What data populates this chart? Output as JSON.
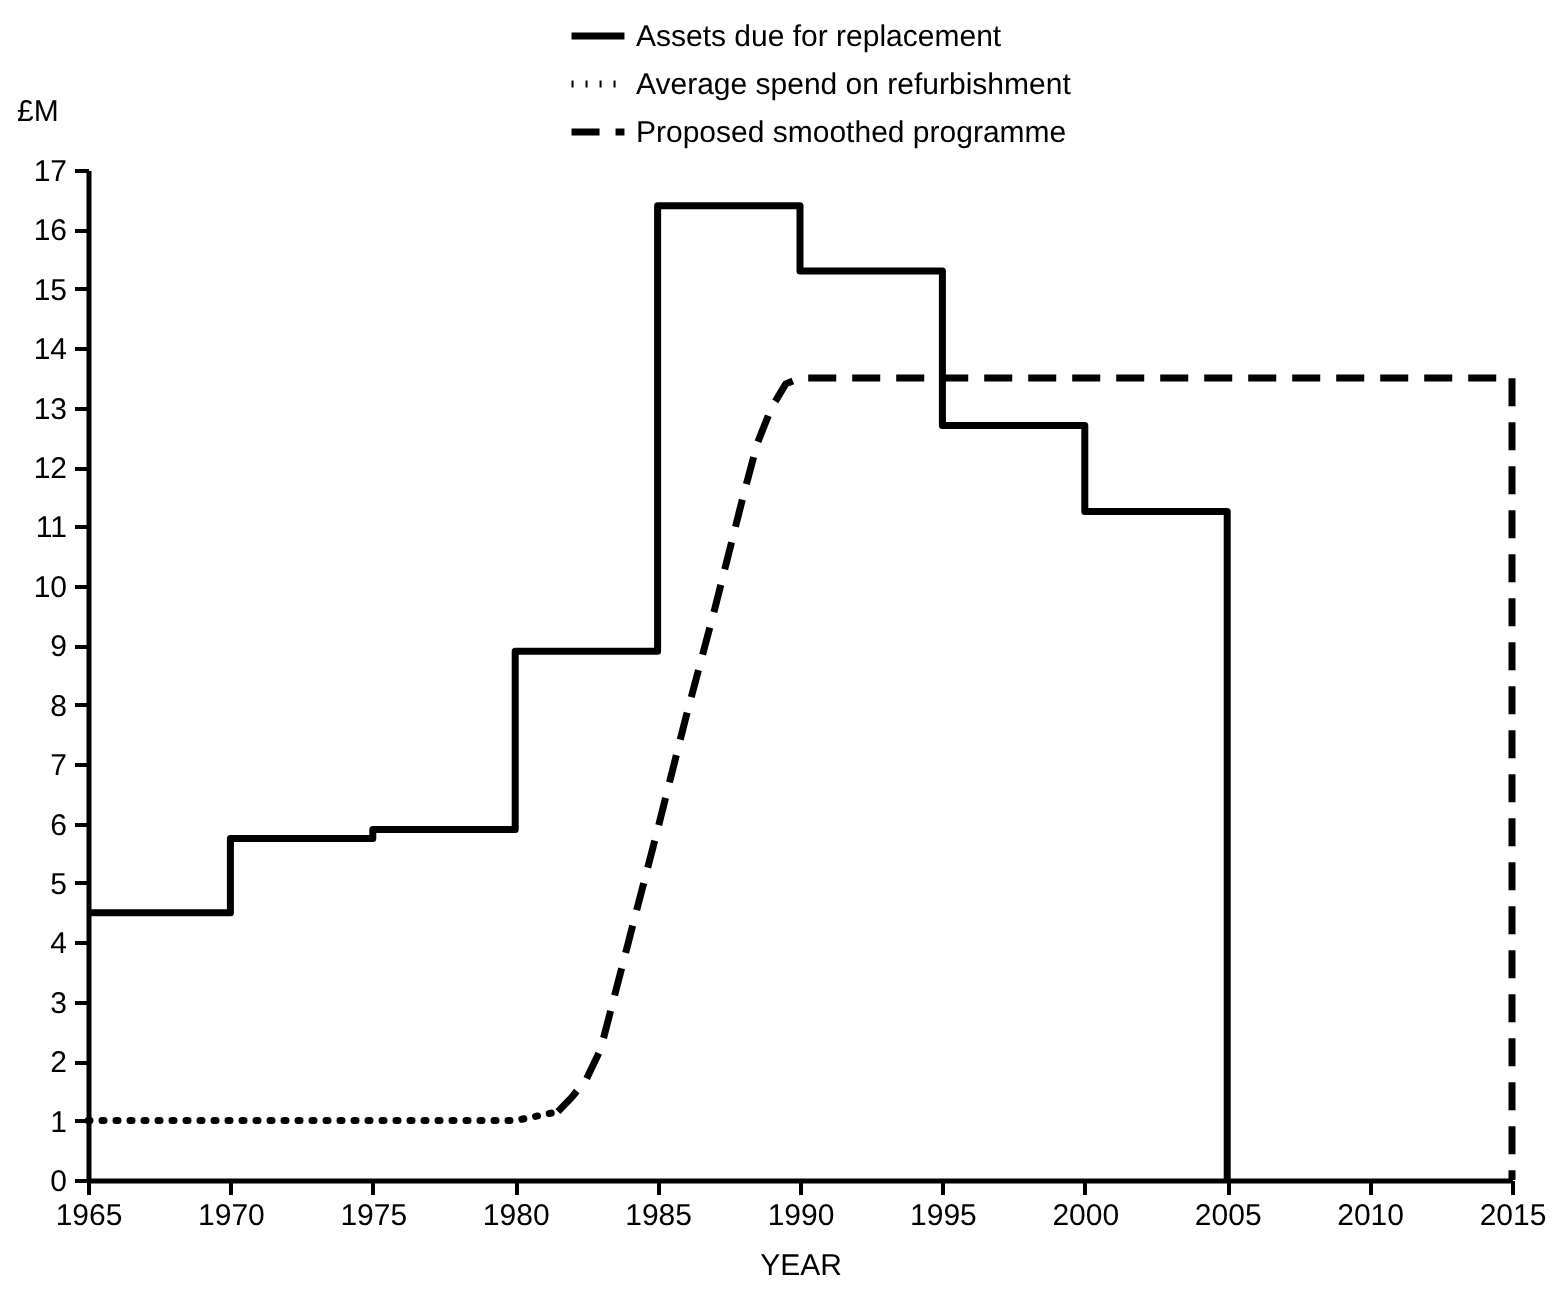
{
  "chart_data": {
    "type": "line",
    "xlabel": "YEAR",
    "ylabel": "£M",
    "xlim": [
      1965,
      2015
    ],
    "xticks": [
      1965,
      1970,
      1975,
      1980,
      1985,
      1990,
      1995,
      2000,
      2005,
      2010,
      2015
    ],
    "ylim": [
      0,
      17
    ],
    "yticks": [
      0,
      1,
      2,
      3,
      4,
      5,
      6,
      7,
      8,
      9,
      10,
      11,
      12,
      13,
      14,
      15,
      16,
      17
    ],
    "grid": false,
    "legend": "top",
    "series": [
      {
        "name": "Assets due for replacement",
        "type": "step",
        "line_style": "solid",
        "color": "#000000",
        "x": [
          1965,
          1970,
          1975,
          1980,
          1985,
          1990,
          1995,
          2000,
          2005
        ],
        "values": [
          4.5,
          5.75,
          5.9,
          8.9,
          16.4,
          15.3,
          12.7,
          11.25,
          0
        ]
      },
      {
        "name": "Average spend on refurbishment",
        "type": "line",
        "line_style": "dotted",
        "color": "#000000",
        "x": [
          1965,
          1970,
          1975,
          1980,
          1981.5
        ],
        "values": [
          1,
          1,
          1,
          1,
          1.15
        ]
      },
      {
        "name": "Proposed smoothed programme",
        "type": "line",
        "line_style": "dashed",
        "color": "#000000",
        "x": [
          1981.5,
          1982,
          1982.5,
          1983,
          1984,
          1985,
          1986,
          1987,
          1988,
          1988.5,
          1989,
          1989.5,
          1990,
          1995,
          2000,
          2005,
          2010,
          2015,
          2015
        ],
        "values": [
          1.15,
          1.4,
          1.7,
          2.2,
          4.05,
          5.9,
          7.8,
          9.6,
          11.5,
          12.4,
          13.0,
          13.4,
          13.5,
          13.5,
          13.5,
          13.5,
          13.5,
          13.5,
          0
        ]
      }
    ]
  }
}
